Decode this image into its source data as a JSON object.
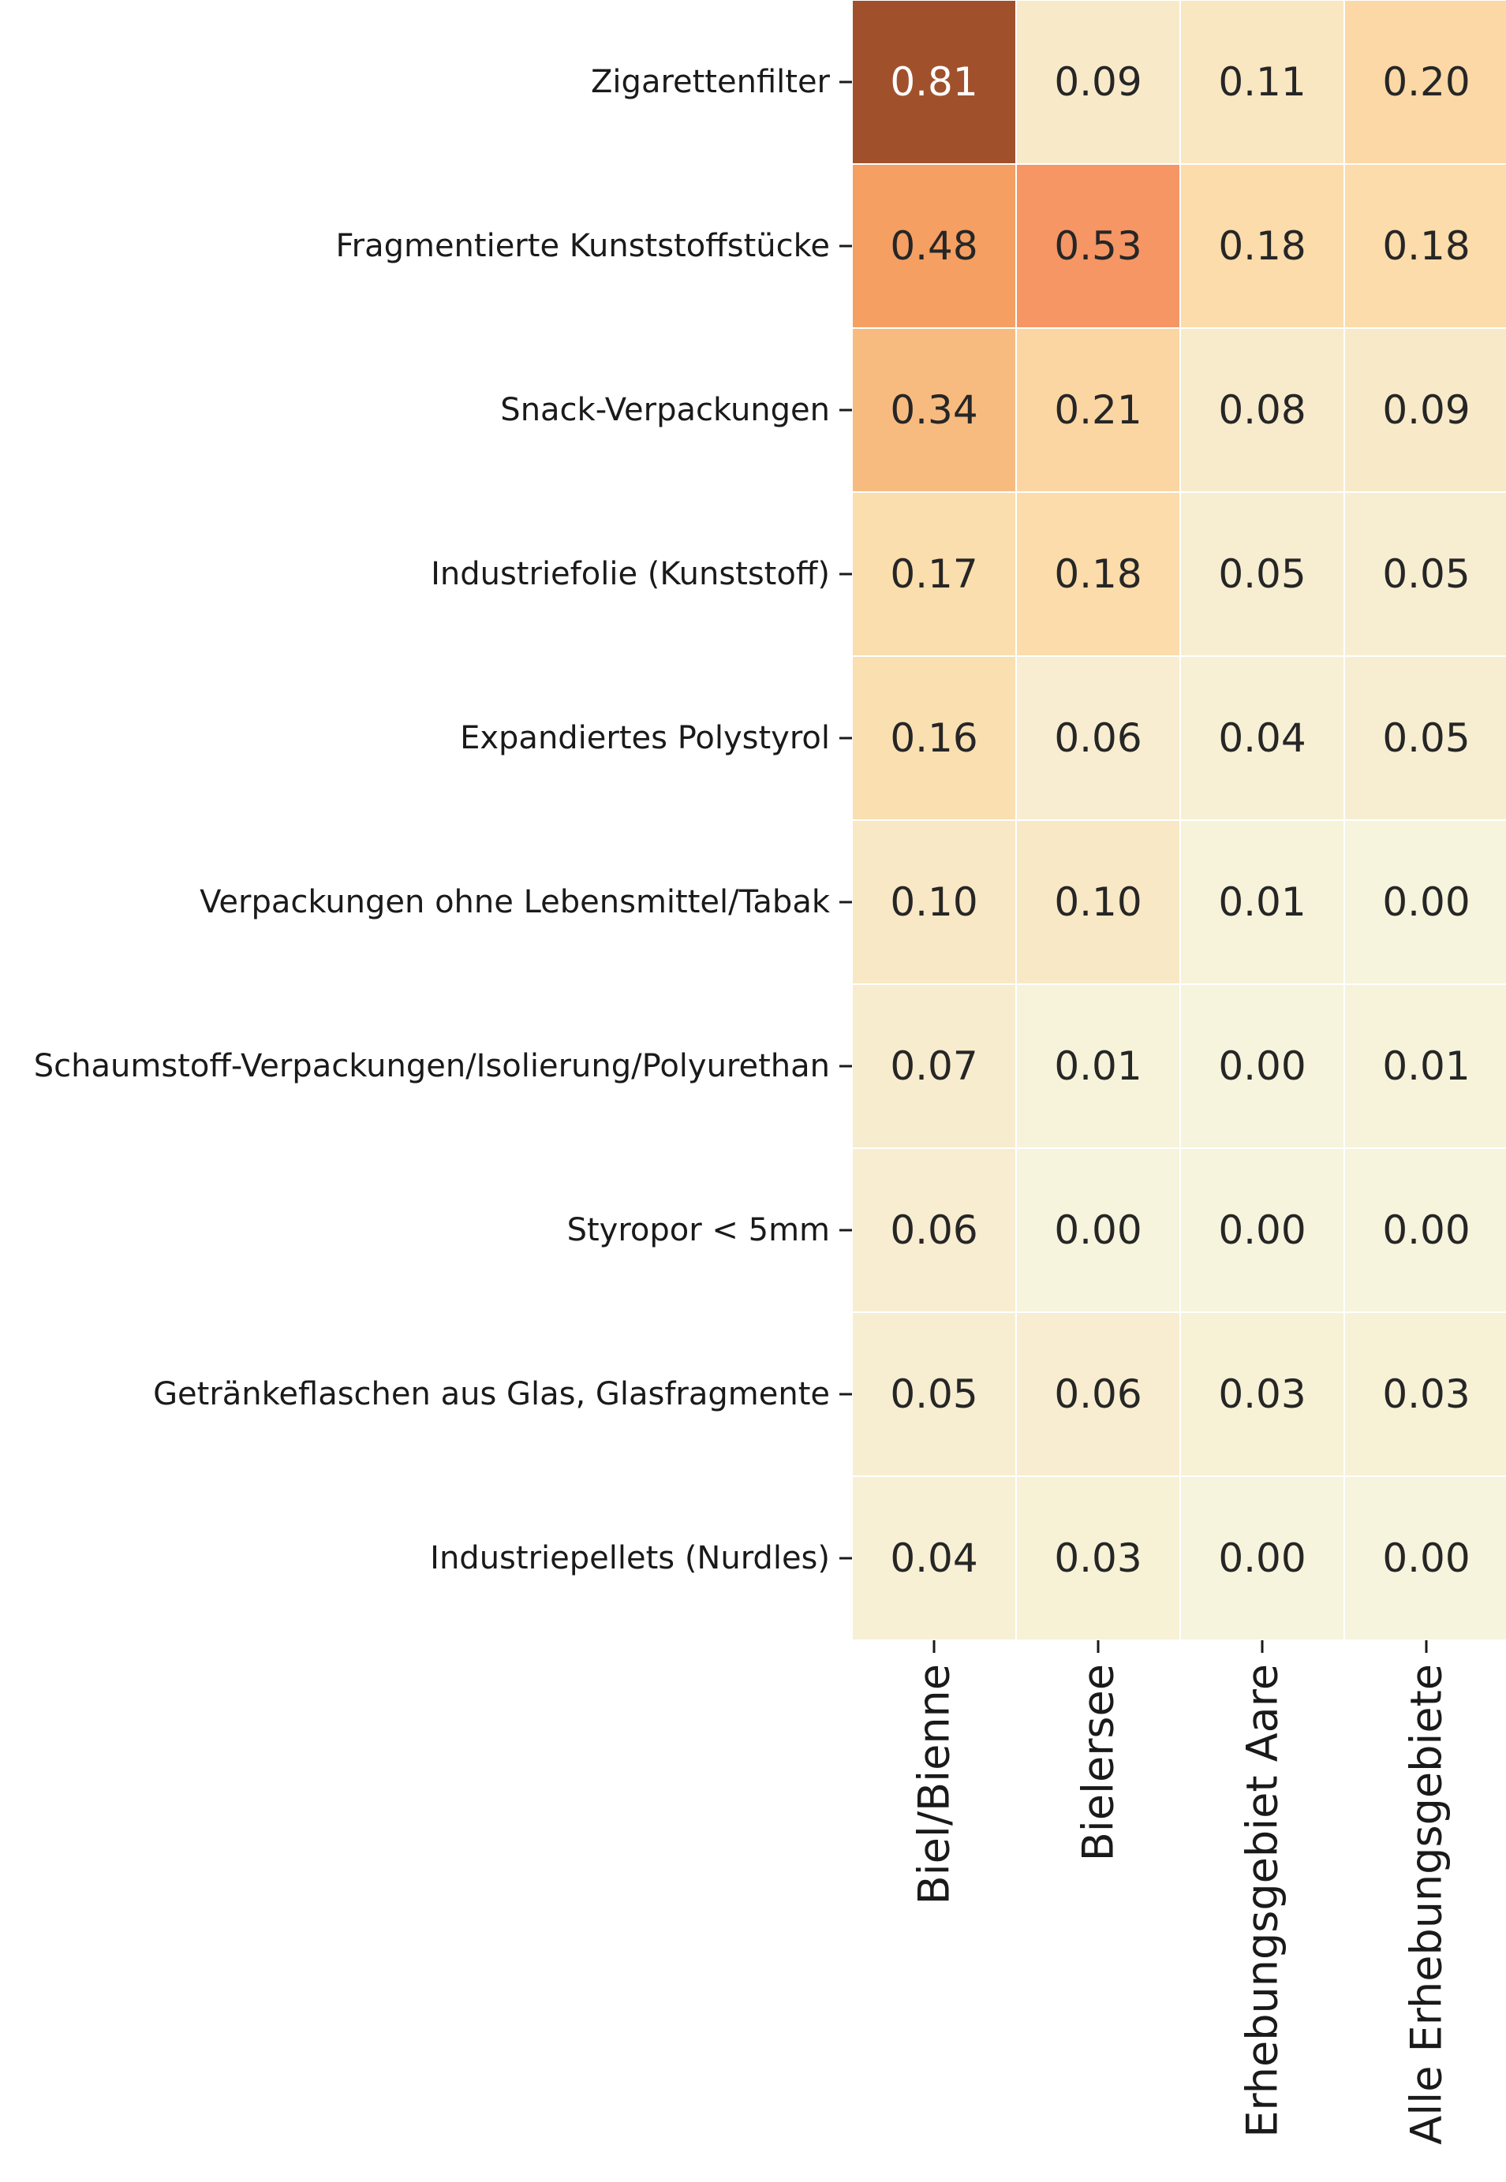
{
  "chart_data": {
    "type": "heatmap",
    "rows": [
      "Zigarettenfilter",
      "Fragmentierte Kunststoffstücke",
      "Snack-Verpackungen",
      "Industriefolie (Kunststoff)",
      "Expandiertes Polystyrol",
      "Verpackungen ohne Lebensmittel/Tabak",
      "Schaumstoff-Verpackungen/Isolierung/Polyurethan",
      "Styropor < 5mm",
      "Getränkeflaschen aus Glas, Glasfragmente",
      "Industriepellets (Nurdles)"
    ],
    "columns": [
      "Biel/Bienne",
      "Bielersee",
      "Erhebungsgebiet Aare",
      "Alle Erhebungsgebiete"
    ],
    "values": [
      [
        0.81,
        0.09,
        0.11,
        0.2
      ],
      [
        0.48,
        0.53,
        0.18,
        0.18
      ],
      [
        0.34,
        0.21,
        0.08,
        0.09
      ],
      [
        0.17,
        0.18,
        0.05,
        0.05
      ],
      [
        0.16,
        0.06,
        0.04,
        0.05
      ],
      [
        0.1,
        0.1,
        0.01,
        0.0
      ],
      [
        0.07,
        0.01,
        0.0,
        0.01
      ],
      [
        0.06,
        0.0,
        0.0,
        0.0
      ],
      [
        0.05,
        0.06,
        0.03,
        0.03
      ],
      [
        0.04,
        0.03,
        0.0,
        0.0
      ]
    ],
    "value_format": "0.00",
    "colormap": "light-yellow-to-brown",
    "color_range": [
      0,
      0.81
    ],
    "colors": {
      "low": "#f6f4dc",
      "mid": "#f5a15c",
      "high": "#a0512c",
      "text_dark": "#262626",
      "text_light": "#ffffff"
    },
    "colorbar": false,
    "xlabel": "",
    "ylabel": "",
    "title": ""
  }
}
